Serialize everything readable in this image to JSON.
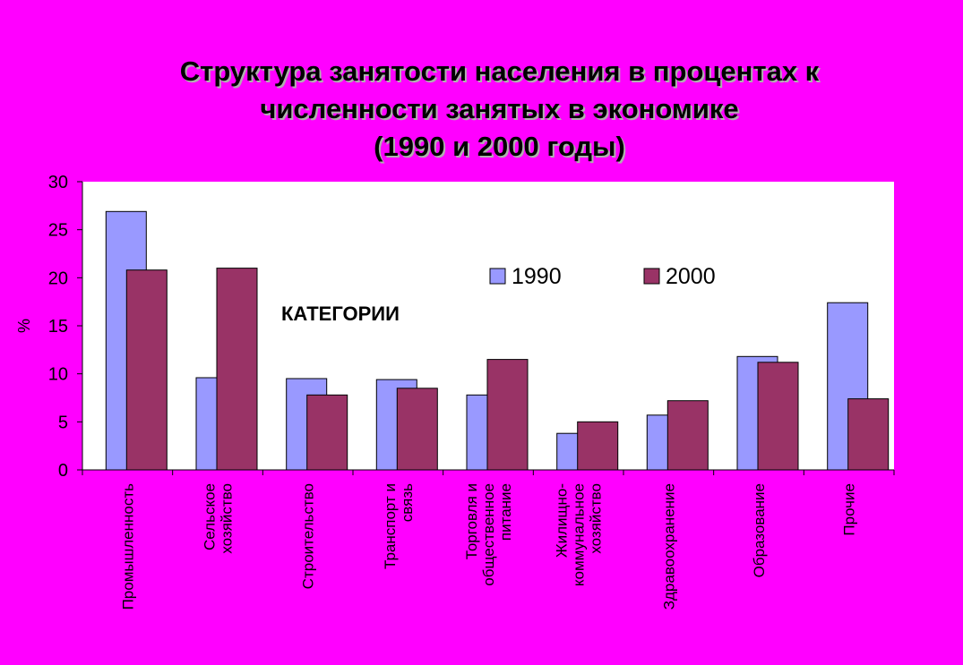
{
  "chart_data": {
    "type": "bar",
    "title_lines": [
      "Структура занятости населения в процентах к",
      "численности занятых в экономике",
      "(1990 и 2000 годы)"
    ],
    "ylabel": "%",
    "annotation": "КАТЕГОРИИ",
    "ylim": [
      0,
      30
    ],
    "yticks": [
      0,
      5,
      10,
      15,
      20,
      25,
      30
    ],
    "grid": false,
    "legend_position": "top-right",
    "categories": [
      [
        "Промышленность"
      ],
      [
        "Сельское",
        "хозяйство"
      ],
      [
        "Строительство"
      ],
      [
        "Транспорт и",
        "связь"
      ],
      [
        "Торговля и",
        "общественное",
        "питание"
      ],
      [
        "Жилищно-",
        "коммунальное",
        "хозяйство"
      ],
      [
        "Здравоохранение"
      ],
      [
        "Образование"
      ],
      [
        "Прочие"
      ]
    ],
    "series": [
      {
        "name": "1990",
        "color": "#9999FF",
        "values": [
          26.9,
          9.6,
          9.5,
          9.4,
          7.8,
          3.8,
          5.7,
          11.8,
          17.4
        ]
      },
      {
        "name": "2000",
        "color": "#993366",
        "values": [
          20.8,
          21.0,
          7.8,
          8.5,
          11.5,
          5.0,
          7.2,
          11.2,
          7.4
        ]
      }
    ]
  }
}
